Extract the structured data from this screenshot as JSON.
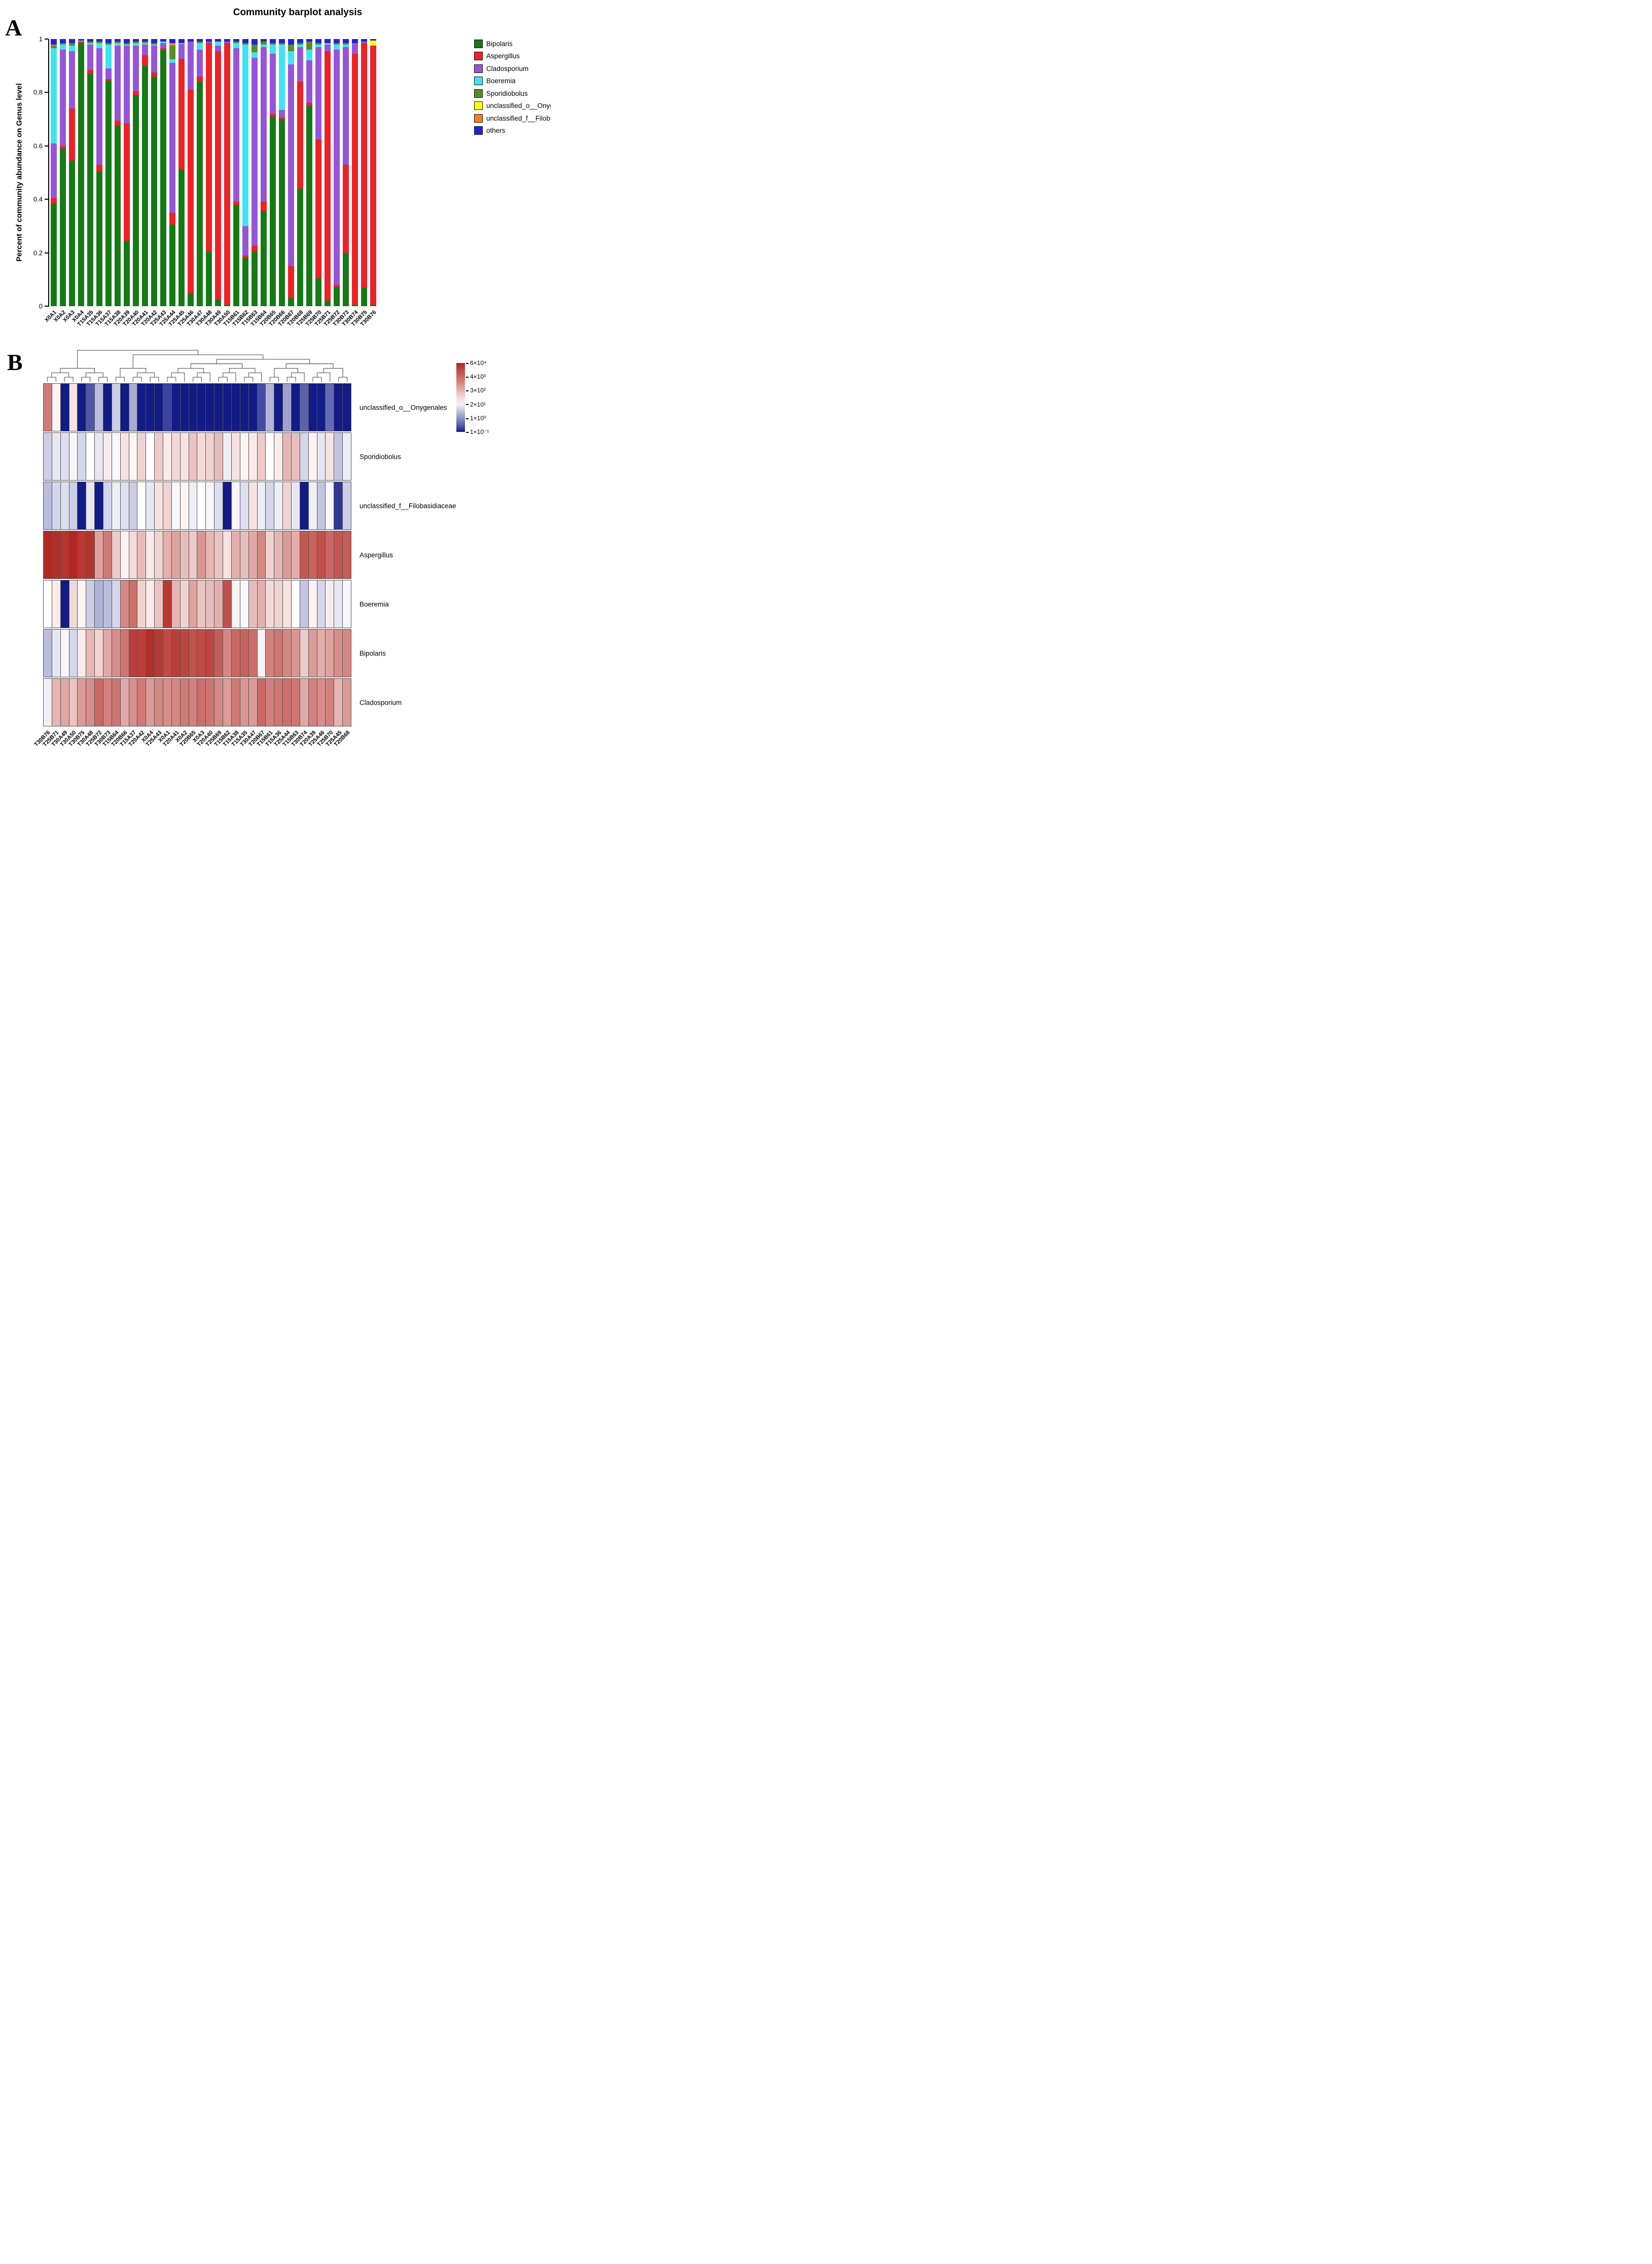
{
  "panel_a": {
    "label": "A"
  },
  "panel_b": {
    "label": "B"
  },
  "chart_data": [
    {
      "type": "bar",
      "stacked": true,
      "title": "Community barplot analysis",
      "xlabel": "",
      "ylabel": "Percent of community abundance on Genus level",
      "ylim": [
        0,
        1
      ],
      "y_ticks": [
        0,
        0.2,
        0.4,
        0.6,
        0.8,
        1
      ],
      "legend_position": "right",
      "categories": [
        "X0A1",
        "X0A2",
        "X0A3",
        "X0A4",
        "T15A35",
        "T15A36",
        "T15A37",
        "T15A38",
        "T20A39",
        "T20A40",
        "T20A41",
        "T20A42",
        "T25A43",
        "T25A44",
        "T25A45",
        "T25A46",
        "T30A47",
        "T30A48",
        "T30A49",
        "T30A50",
        "T15B61",
        "T15B62",
        "T15B63",
        "T15B64",
        "T20B65",
        "T20B66",
        "T20B67",
        "T20B68",
        "T25B69",
        "T25B70",
        "T25B71",
        "T25B72",
        "T30B73",
        "T30B74",
        "T30B75",
        "T30B76"
      ],
      "series": [
        {
          "name": "Bipolaris",
          "color": "#157a15",
          "values": [
            0.385,
            0.59,
            0.545,
            0.985,
            0.87,
            0.505,
            0.845,
            0.675,
            0.245,
            0.79,
            0.9,
            0.86,
            0.96,
            0.305,
            0.515,
            0.05,
            0.84,
            0.205,
            0.025,
            0.005,
            0.38,
            0.18,
            0.205,
            0.355,
            0.71,
            0.7,
            0.03,
            0.44,
            0.75,
            0.105,
            0.02,
            0.07,
            0.2,
            0.005,
            0.07,
            0.005
          ]
        },
        {
          "name": "Aspergillus",
          "color": "#ee2124",
          "values": [
            0.02,
            0.01,
            0.195,
            0.003,
            0.015,
            0.025,
            0.005,
            0.02,
            0.44,
            0.015,
            0.04,
            0.015,
            0.005,
            0.045,
            0.415,
            0.76,
            0.02,
            0.78,
            0.93,
            0.98,
            0.01,
            0.01,
            0.02,
            0.035,
            0.01,
            0.005,
            0.12,
            0.4,
            0.01,
            0.52,
            0.935,
            0.01,
            0.33,
            0.94,
            0.915,
            0.97
          ]
        },
        {
          "name": "Cladosporium",
          "color": "#9655d8",
          "values": [
            0.205,
            0.36,
            0.215,
            0.005,
            0.095,
            0.435,
            0.04,
            0.28,
            0.29,
            0.17,
            0.04,
            0.1,
            0.02,
            0.56,
            0.055,
            0.18,
            0.1,
            0.005,
            0.02,
            0.005,
            0.575,
            0.11,
            0.705,
            0.58,
            0.225,
            0.03,
            0.755,
            0.13,
            0.16,
            0.345,
            0.025,
            0.88,
            0.44,
            0.04,
            0.005,
            0.0
          ]
        },
        {
          "name": "Boeremia",
          "color": "#3fe4f2",
          "values": [
            0.355,
            0.02,
            0.02,
            0.002,
            0.005,
            0.02,
            0.09,
            0.01,
            0.005,
            0.01,
            0.005,
            0.005,
            0.005,
            0.015,
            0.005,
            0.0,
            0.025,
            0.0,
            0.015,
            0.0,
            0.02,
            0.68,
            0.02,
            0.01,
            0.035,
            0.245,
            0.05,
            0.01,
            0.04,
            0.01,
            0.005,
            0.02,
            0.01,
            0.0,
            0.0,
            0.0
          ]
        },
        {
          "name": "Sporidiobolus",
          "color": "#568f25",
          "values": [
            0.01,
            0.005,
            0.01,
            0.0,
            0.005,
            0.005,
            0.005,
            0.005,
            0.005,
            0.005,
            0.005,
            0.005,
            0.0,
            0.05,
            0.0,
            0.0,
            0.005,
            0.0,
            0.0,
            0.0,
            0.005,
            0.005,
            0.03,
            0.01,
            0.005,
            0.005,
            0.025,
            0.005,
            0.03,
            0.005,
            0.0,
            0.005,
            0.005,
            0.0,
            0.0,
            0.0
          ]
        },
        {
          "name": "unclassified_o__Onygenales",
          "color": "#ffff00",
          "values": [
            0.0,
            0.0,
            0.0,
            0.0,
            0.0,
            0.0,
            0.0,
            0.0,
            0.0,
            0.0,
            0.0,
            0.0,
            0.0,
            0.0,
            0.0,
            0.0,
            0.0,
            0.0,
            0.0,
            0.0,
            0.0,
            0.0,
            0.0,
            0.0,
            0.0,
            0.0,
            0.0,
            0.0,
            0.0,
            0.0,
            0.0,
            0.0,
            0.0,
            0.0,
            0.0,
            0.02
          ]
        },
        {
          "name": "unclassified_f__Filobasidiaceae",
          "color": "#f57e20",
          "values": [
            0.005,
            0.0,
            0.0,
            0.0,
            0.0,
            0.0,
            0.0,
            0.0,
            0.0,
            0.0,
            0.0,
            0.0,
            0.0,
            0.01,
            0.0,
            0.0,
            0.0,
            0.0,
            0.0,
            0.0,
            0.0,
            0.0,
            0.0,
            0.0,
            0.0,
            0.0,
            0.0,
            0.0,
            0.0,
            0.0,
            0.0,
            0.0,
            0.0,
            0.0,
            0.0,
            0.0
          ]
        },
        {
          "name": "others",
          "color": "#2323d4",
          "values": [
            0.02,
            0.015,
            0.015,
            0.005,
            0.01,
            0.01,
            0.015,
            0.01,
            0.015,
            0.01,
            0.01,
            0.015,
            0.01,
            0.015,
            0.015,
            0.01,
            0.01,
            0.01,
            0.01,
            0.01,
            0.01,
            0.015,
            0.02,
            0.01,
            0.015,
            0.015,
            0.02,
            0.015,
            0.01,
            0.015,
            0.015,
            0.015,
            0.015,
            0.015,
            0.01,
            0.005
          ]
        }
      ]
    },
    {
      "type": "heatmap",
      "value_scale": "log10 abundance (estimated from colors)",
      "domain": [
        -1,
        4.6
      ],
      "mid": 1.4,
      "colors": {
        "low": "#121b86",
        "mid": "#ffffff",
        "high": "#b22822"
      },
      "colorbar_ticks": [
        "6×10⁴",
        "4×10³",
        "3×10²",
        "2×10¹",
        "1×10⁰",
        "1×10⁻¹"
      ],
      "rows": [
        "unclassified_o__Onygenales",
        "Sporidiobolus",
        "unclassified_f__Filobasidiaceae",
        "Aspergillus",
        "Boeremia",
        "Bipolaris",
        "Cladosporium"
      ],
      "columns": [
        "T30B76",
        "T25B71",
        "T30A49",
        "T30A50",
        "T30B75",
        "T30A48",
        "T25B72",
        "T30B73",
        "T15B64",
        "T20B66",
        "T15A37",
        "T20A42",
        "X0A4",
        "T25A43",
        "X0A1",
        "T20A41",
        "X0A2",
        "T20B65",
        "X0A3",
        "T20A40",
        "T25B69",
        "T15B62",
        "T15A38",
        "T15A35",
        "T30A47",
        "T20B67",
        "T15B61",
        "T15A36",
        "T25A44",
        "T15B63",
        "T30B74",
        "T20A39",
        "T25A46",
        "T25B70",
        "T25A45",
        "T20B68"
      ],
      "values": [
        [
          3.2,
          1.5,
          -1,
          1.7,
          -1,
          -0.5,
          0.6,
          -1,
          0.8,
          -1,
          0.4,
          -1,
          -1,
          -1,
          -0.7,
          -1,
          -1,
          -1,
          -1,
          -1,
          -1,
          -1,
          -1,
          -1,
          -1,
          -0.6,
          0.5,
          -1,
          0.3,
          -1,
          -0.4,
          -1,
          -1,
          -0.3,
          -1,
          -1
        ],
        [
          0.8,
          1.1,
          1.0,
          1.3,
          0.9,
          1.4,
          1.1,
          1.6,
          1.3,
          1.7,
          1.5,
          1.9,
          1.4,
          2.0,
          1.6,
          1.8,
          1.7,
          2.1,
          1.8,
          1.9,
          2.2,
          1.2,
          1.7,
          1.5,
          1.6,
          2.0,
          1.4,
          1.6,
          2.3,
          2.2,
          0.9,
          1.5,
          1.1,
          1.7,
          0.7,
          1.2
        ],
        [
          0.6,
          0.9,
          1.0,
          0.8,
          -1,
          1.1,
          -1,
          0.9,
          1.2,
          1.0,
          0.8,
          1.4,
          1.1,
          1.7,
          1.9,
          1.3,
          1.5,
          1.2,
          1.4,
          1.3,
          1.0,
          -1,
          1.3,
          1.0,
          1.7,
          1.2,
          0.9,
          1.2,
          1.9,
          1.1,
          -1,
          1.2,
          0.7,
          1.3,
          -0.8,
          0.8
        ],
        [
          4.6,
          4.5,
          4.4,
          4.6,
          4.3,
          4.4,
          2.6,
          3.2,
          2.0,
          1.5,
          1.8,
          2.2,
          1.6,
          1.9,
          2.4,
          2.6,
          2.2,
          2.0,
          2.8,
          2.3,
          2.1,
          1.7,
          2.4,
          2.2,
          2.5,
          3.0,
          1.9,
          2.3,
          2.7,
          2.4,
          3.8,
          3.6,
          3.9,
          3.5,
          3.8,
          3.7
        ],
        [
          1.4,
          1.6,
          -1,
          1.8,
          1.5,
          0.8,
          0.5,
          0.6,
          0.9,
          3.0,
          3.4,
          1.9,
          1.6,
          2.1,
          4.3,
          2.3,
          1.9,
          2.6,
          2.1,
          2.2,
          2.4,
          3.9,
          1.5,
          1.3,
          2.2,
          2.4,
          1.8,
          1.9,
          1.7,
          1.4,
          0.7,
          1.5,
          0.9,
          1.6,
          1.1,
          1.3
        ],
        [
          0.6,
          1.1,
          1.3,
          0.9,
          1.6,
          2.3,
          1.9,
          2.5,
          2.9,
          3.3,
          4.2,
          4.2,
          4.5,
          4.3,
          4.0,
          4.2,
          4.1,
          3.9,
          4.0,
          4.1,
          3.7,
          3.0,
          3.5,
          3.6,
          3.4,
          1.5,
          3.1,
          3.3,
          3.0,
          2.8,
          2.0,
          2.7,
          2.4,
          2.6,
          2.9,
          3.0
        ],
        [
          1.2,
          2.3,
          2.5,
          2.1,
          2.7,
          2.9,
          3.5,
          3.1,
          3.3,
          2.5,
          2.9,
          3.2,
          2.7,
          3.0,
          2.9,
          3.0,
          3.2,
          3.1,
          3.4,
          3.3,
          3.0,
          2.7,
          3.2,
          2.8,
          2.7,
          3.5,
          3.1,
          3.3,
          3.4,
          3.3,
          2.5,
          3.1,
          2.9,
          3.1,
          2.3,
          2.7
        ]
      ]
    }
  ]
}
